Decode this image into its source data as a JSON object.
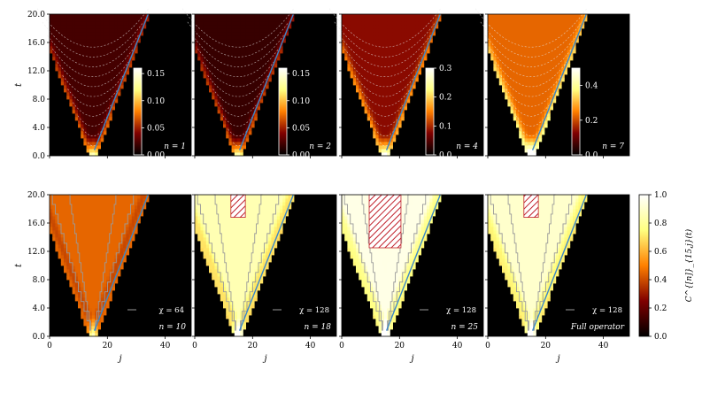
{
  "chart_data": {
    "type": "heatmap",
    "x_label": "j",
    "y_label": "t",
    "x_range": [
      0,
      49
    ],
    "t_range": [
      0,
      20
    ],
    "x_ticks": [
      "0",
      "20",
      "40"
    ],
    "y_ticks": [
      "0.0",
      "4.0",
      "8.0",
      "12.0",
      "16.0",
      "20.0"
    ],
    "source_site": 15,
    "light_cone_slope_j_per_t": 0.93,
    "colormap": "afmhot",
    "top_row": [
      {
        "label": "n = 1",
        "colorbar_ticks": [
          "0.00",
          "0.05",
          "0.10",
          "0.15"
        ],
        "colorbar_max": 0.16,
        "brightness": 0.15
      },
      {
        "label": "n = 2",
        "colorbar_ticks": [
          "0.00",
          "0.05",
          "0.10",
          "0.15"
        ],
        "colorbar_max": 0.16,
        "brightness": 0.12
      },
      {
        "label": "n = 4",
        "colorbar_ticks": [
          "0.0",
          "0.1",
          "0.2",
          "0.3"
        ],
        "colorbar_max": 0.3,
        "brightness": 0.3
      },
      {
        "label": "n = 7",
        "colorbar_ticks": [
          "0.0",
          "0.2",
          "0.4"
        ],
        "colorbar_max": 0.5,
        "brightness": 0.5
      }
    ],
    "bottom_row": [
      {
        "label": "n = 10",
        "chi_label": "χ = 64",
        "brightness": 0.45,
        "hatch": false
      },
      {
        "label": "n = 18",
        "chi_label": "χ = 128",
        "brightness": 0.85,
        "hatch": true
      },
      {
        "label": "n = 25",
        "chi_label": "χ = 128",
        "brightness": 0.95,
        "hatch": true
      },
      {
        "label": "Full operator",
        "chi_label": "χ = 128",
        "brightness": 0.9,
        "hatch": true
      }
    ],
    "shared_colorbar": {
      "label": "C^{[n]}_{15,j}(t)",
      "ticks": [
        "0.0",
        "0.2",
        "0.4",
        "0.6",
        "0.8",
        "1.0"
      ],
      "range": [
        0,
        1
      ]
    }
  },
  "colors": {
    "light_cone": "#3a87c8",
    "chi_contour": "#9a9a9a",
    "hatch": "#c0202a",
    "circles": "#e8e8e8"
  }
}
